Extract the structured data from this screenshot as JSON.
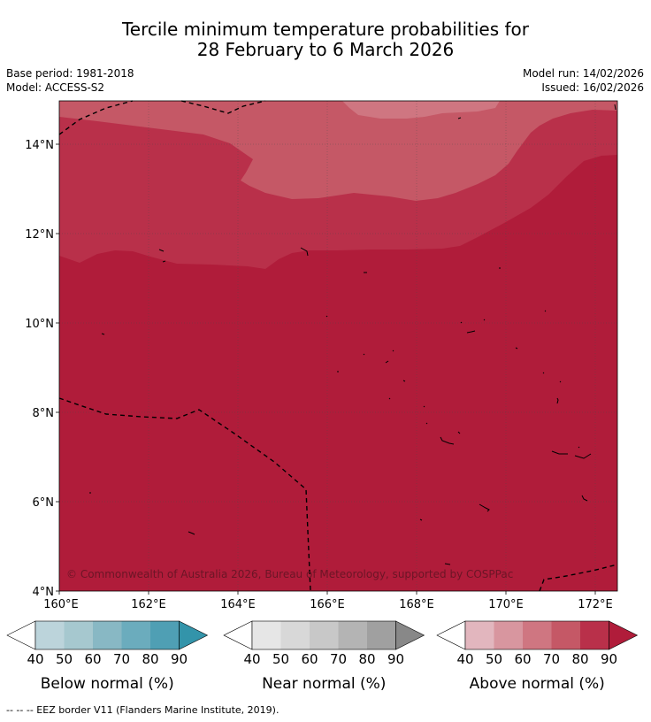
{
  "title": {
    "line1": "Tercile minimum temperature probabilities for",
    "line2": "28 February to 6 March 2026"
  },
  "meta": {
    "base_period": "Base period: 1981-2018",
    "model": "Model: ACCESS-S2",
    "model_run": "Model run: 14/02/2026",
    "issued": "Issued: 16/02/2026"
  },
  "map": {
    "lon_ticks": [
      "160°E",
      "162°E",
      "164°E",
      "166°E",
      "168°E",
      "170°E",
      "172°E"
    ],
    "lat_ticks": [
      "4°N",
      "6°N",
      "8°N",
      "10°N",
      "12°N",
      "14°N"
    ],
    "copyright": "© Commonwealth of Australia 2026, Bureau of Meteorology, supported by COSPPac"
  },
  "legends": [
    {
      "label": "Below normal (%)",
      "ticks": [
        "40",
        "50",
        "60",
        "70",
        "80",
        "90"
      ],
      "colors": [
        "#ffffff",
        "#bcd4db",
        "#a6c8cf",
        "#88b8c4",
        "#6bacbd",
        "#4f9fb4",
        "#3394aa"
      ]
    },
    {
      "label": "Near normal (%)",
      "ticks": [
        "40",
        "50",
        "60",
        "70",
        "80",
        "90"
      ],
      "colors": [
        "#ffffff",
        "#e6e6e6",
        "#d8d8d8",
        "#c8c8c8",
        "#b4b4b4",
        "#a0a0a0",
        "#888888"
      ]
    },
    {
      "label": "Above normal (%)",
      "ticks": [
        "40",
        "50",
        "60",
        "70",
        "80",
        "90"
      ],
      "colors": [
        "#ffffff",
        "#e2b6be",
        "#d8969f",
        "#cf7681",
        "#c55866",
        "#b9304a",
        "#b01c3a"
      ]
    }
  ],
  "footnote": "--  --  -- EEZ border V11 (Flanders Marine Institute, 2019).",
  "colors": {
    "prob_60_70": "#cf7681",
    "prob_70_80": "#c55866",
    "prob_80_90": "#b9304a",
    "prob_90": "#b01c3a"
  }
}
